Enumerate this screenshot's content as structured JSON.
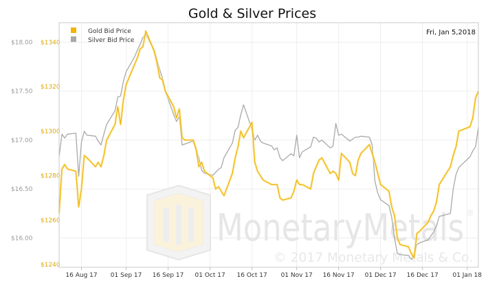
{
  "chart_data": {
    "type": "line",
    "title": "Gold & Silver Prices",
    "date_label": "Fri, Jan 5,2018",
    "legend_placement": "top-left",
    "grid": true,
    "x_ticks": [
      "16 Aug 17",
      "01 Sep 17",
      "16 Sep 17",
      "01 Oct 17",
      "16 Oct 17",
      "01 Nov 17",
      "16 Nov 17",
      "01 Dec 17",
      "16 Dec 17",
      "01 Jan 18"
    ],
    "x_range": [
      "2017-08-08",
      "2018-01-05"
    ],
    "silver_axis": {
      "range": [
        15.7,
        18.2
      ],
      "ticks": [
        "$16.00",
        "$16.50",
        "$17.00",
        "$17.50",
        "$18.00"
      ],
      "tick_values": [
        16.0,
        16.5,
        17.0,
        17.5,
        18.0
      ]
    },
    "gold_axis": {
      "range": [
        1238.8,
        1348.8
      ],
      "ticks": [
        "$1240",
        "$1260",
        "$1280",
        "$1300",
        "$1320",
        "$1340"
      ],
      "tick_values": [
        1240,
        1260,
        1280,
        1300,
        1320,
        1340
      ]
    },
    "series": [
      {
        "name": "Gold Bid Price",
        "color": "#f0b400",
        "axis": "gold",
        "x": [
          "2017-08-08",
          "2017-08-09",
          "2017-08-10",
          "2017-08-11",
          "2017-08-14",
          "2017-08-15",
          "2017-08-16",
          "2017-08-17",
          "2017-08-18",
          "2017-08-21",
          "2017-08-22",
          "2017-08-23",
          "2017-08-24",
          "2017-08-25",
          "2017-08-28",
          "2017-08-29",
          "2017-08-30",
          "2017-08-31",
          "2017-09-01",
          "2017-09-04",
          "2017-09-05",
          "2017-09-06",
          "2017-09-07",
          "2017-09-08",
          "2017-09-11",
          "2017-09-12",
          "2017-09-13",
          "2017-09-14",
          "2017-09-15",
          "2017-09-18",
          "2017-09-19",
          "2017-09-20",
          "2017-09-21",
          "2017-09-22",
          "2017-09-25",
          "2017-09-26",
          "2017-09-27",
          "2017-09-28",
          "2017-09-29",
          "2017-10-02",
          "2017-10-03",
          "2017-10-04",
          "2017-10-05",
          "2017-10-06",
          "2017-10-09",
          "2017-10-10",
          "2017-10-11",
          "2017-10-12",
          "2017-10-13",
          "2017-10-16",
          "2017-10-17",
          "2017-10-18",
          "2017-10-19",
          "2017-10-20",
          "2017-10-23",
          "2017-10-24",
          "2017-10-25",
          "2017-10-26",
          "2017-10-27",
          "2017-10-30",
          "2017-10-31",
          "2017-11-01",
          "2017-11-02",
          "2017-11-03",
          "2017-11-06",
          "2017-11-07",
          "2017-11-08",
          "2017-11-09",
          "2017-11-10",
          "2017-11-13",
          "2017-11-14",
          "2017-11-15",
          "2017-11-16",
          "2017-11-17",
          "2017-11-20",
          "2017-11-21",
          "2017-11-22",
          "2017-11-23",
          "2017-11-24",
          "2017-11-27",
          "2017-11-28",
          "2017-11-29",
          "2017-11-30",
          "2017-12-01",
          "2017-12-04",
          "2017-12-05",
          "2017-12-06",
          "2017-12-07",
          "2017-12-08",
          "2017-12-11",
          "2017-12-12",
          "2017-12-13",
          "2017-12-14",
          "2017-12-15",
          "2017-12-18",
          "2017-12-19",
          "2017-12-20",
          "2017-12-21",
          "2017-12-22",
          "2017-12-26",
          "2017-12-27",
          "2017-12-28",
          "2017-12-29",
          "2018-01-02",
          "2018-01-03",
          "2018-01-04",
          "2018-01-05"
        ],
        "values": [
          1263,
          1283,
          1285,
          1283,
          1282,
          1266,
          1274,
          1289,
          1288,
          1284,
          1286,
          1284,
          1289,
          1296,
          1303,
          1311,
          1303,
          1314,
          1321,
          1330,
          1333,
          1337,
          1338,
          1345,
          1336,
          1331,
          1324,
          1323,
          1318,
          1311,
          1306,
          1310,
          1297,
          1296,
          1296,
          1292,
          1284,
          1286,
          1282,
          1279,
          1274,
          1275,
          1273,
          1271,
          1281,
          1288,
          1293,
          1300,
          1297,
          1304,
          1286,
          1282,
          1280,
          1278,
          1276,
          1276,
          1276,
          1270,
          1269,
          1270,
          1273,
          1278,
          1276,
          1276,
          1274,
          1281,
          1284,
          1287,
          1288,
          1281,
          1282,
          1281,
          1278,
          1290,
          1286,
          1281,
          1280,
          1287,
          1290,
          1294,
          1290,
          1286,
          1281,
          1276,
          1273,
          1266,
          1262,
          1252,
          1249,
          1248,
          1245,
          1243,
          1254,
          1255,
          1259,
          1262,
          1264,
          1268,
          1276,
          1284,
          1289,
          1293,
          1300,
          1302,
          1306,
          1315,
          1318
        ]
      },
      {
        "name": "Silver Bid Price",
        "color": "#a8a8a8",
        "axis": "silver",
        "x": [
          "2017-08-08",
          "2017-08-09",
          "2017-08-10",
          "2017-08-11",
          "2017-08-14",
          "2017-08-15",
          "2017-08-16",
          "2017-08-17",
          "2017-08-18",
          "2017-08-21",
          "2017-08-22",
          "2017-08-23",
          "2017-08-24",
          "2017-08-25",
          "2017-08-28",
          "2017-08-29",
          "2017-08-30",
          "2017-08-31",
          "2017-09-01",
          "2017-09-04",
          "2017-09-05",
          "2017-09-06",
          "2017-09-07",
          "2017-09-08",
          "2017-09-11",
          "2017-09-12",
          "2017-09-13",
          "2017-09-14",
          "2017-09-15",
          "2017-09-18",
          "2017-09-19",
          "2017-09-20",
          "2017-09-21",
          "2017-09-22",
          "2017-09-25",
          "2017-09-26",
          "2017-09-27",
          "2017-09-28",
          "2017-09-29",
          "2017-10-02",
          "2017-10-03",
          "2017-10-04",
          "2017-10-05",
          "2017-10-06",
          "2017-10-09",
          "2017-10-10",
          "2017-10-11",
          "2017-10-12",
          "2017-10-13",
          "2017-10-16",
          "2017-10-17",
          "2017-10-18",
          "2017-10-19",
          "2017-10-20",
          "2017-10-23",
          "2017-10-24",
          "2017-10-25",
          "2017-10-26",
          "2017-10-27",
          "2017-10-30",
          "2017-10-31",
          "2017-11-01",
          "2017-11-02",
          "2017-11-03",
          "2017-11-06",
          "2017-11-07",
          "2017-11-08",
          "2017-11-09",
          "2017-11-10",
          "2017-11-13",
          "2017-11-14",
          "2017-11-15",
          "2017-11-16",
          "2017-11-17",
          "2017-11-20",
          "2017-11-21",
          "2017-11-22",
          "2017-11-23",
          "2017-11-24",
          "2017-11-27",
          "2017-11-28",
          "2017-11-29",
          "2017-11-30",
          "2017-12-01",
          "2017-12-04",
          "2017-12-05",
          "2017-12-06",
          "2017-12-07",
          "2017-12-08",
          "2017-12-11",
          "2017-12-12",
          "2017-12-13",
          "2017-12-14",
          "2017-12-15",
          "2017-12-18",
          "2017-12-19",
          "2017-12-20",
          "2017-12-21",
          "2017-12-22",
          "2017-12-26",
          "2017-12-27",
          "2017-12-28",
          "2017-12-29",
          "2018-01-02",
          "2018-01-03",
          "2018-01-04",
          "2018-01-05"
        ],
        "values": [
          16.83,
          17.06,
          17.02,
          17.06,
          17.07,
          16.63,
          16.98,
          17.09,
          17.05,
          17.04,
          16.99,
          16.95,
          17.06,
          17.16,
          17.3,
          17.44,
          17.45,
          17.6,
          17.7,
          17.85,
          17.92,
          17.98,
          18.05,
          18.08,
          17.92,
          17.82,
          17.72,
          17.63,
          17.5,
          17.26,
          17.19,
          17.24,
          16.95,
          16.96,
          16.99,
          16.9,
          16.82,
          16.69,
          16.66,
          16.64,
          16.67,
          16.7,
          16.72,
          16.82,
          16.97,
          17.1,
          17.13,
          17.26,
          17.36,
          17.11,
          17.0,
          17.05,
          16.99,
          16.97,
          16.94,
          16.9,
          16.92,
          16.82,
          16.79,
          16.86,
          16.84,
          17.05,
          16.82,
          16.88,
          16.93,
          17.03,
          17.02,
          16.98,
          17.0,
          16.92,
          16.94,
          17.17,
          17.05,
          17.06,
          16.99,
          17.01,
          17.03,
          17.03,
          17.04,
          17.03,
          16.95,
          16.58,
          16.46,
          16.39,
          16.33,
          16.21,
          16.0,
          15.84,
          15.83,
          15.82,
          15.78,
          15.82,
          15.93,
          15.95,
          15.98,
          16.02,
          16.06,
          16.12,
          16.22,
          16.25,
          16.5,
          16.65,
          16.72,
          16.83,
          16.89,
          16.93,
          17.13
        ]
      }
    ],
    "watermark": {
      "text": "MonetaryMetals",
      "copyright": "© 2017 Monetary Metals & Co.",
      "registered": "®"
    }
  }
}
